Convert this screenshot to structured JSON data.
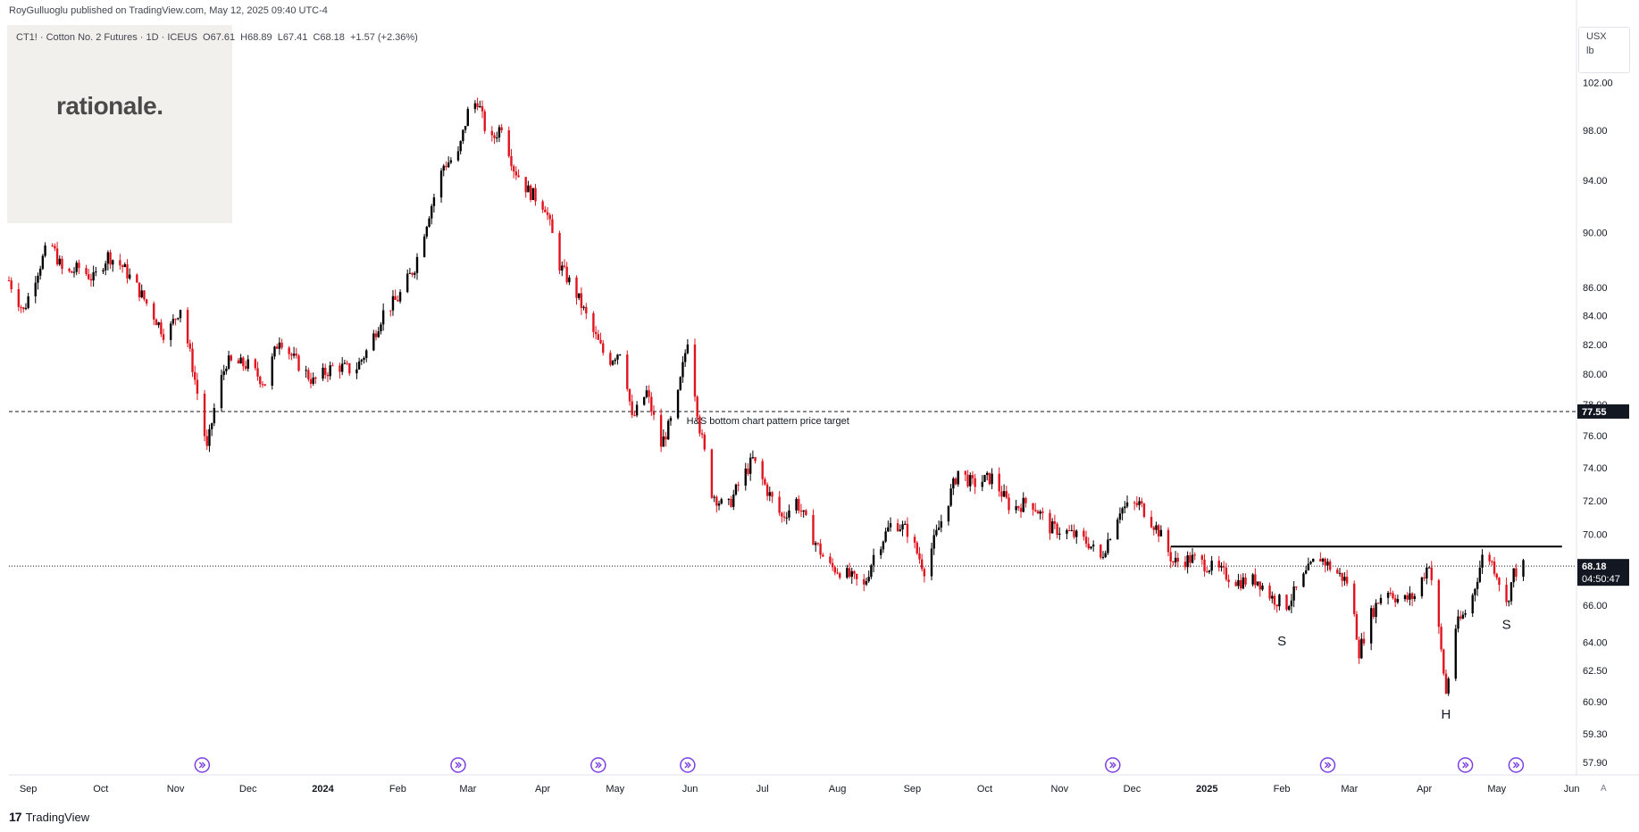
{
  "header": {
    "publisher": "RoyGulluoglu published on TradingView.com, May 12, 2025 09:40 UTC-4"
  },
  "symbol": {
    "name": "CT1! · Cotton No. 2 Futures · 1D · ICEUS",
    "open": "O67.61",
    "high": "H68.89",
    "low": "L67.41",
    "close": "C68.18",
    "change": "+1.57 (+2.36%)"
  },
  "logo": {
    "text": "rationale."
  },
  "units": {
    "currency": "USX",
    "unit": "lb"
  },
  "footer": {
    "brand": "TradingView",
    "auto": "A"
  },
  "chart_data": {
    "type": "candlestick",
    "title": "",
    "y_ticks": [
      "102.00",
      "98.00",
      "94.00",
      "90.00",
      "86.00",
      "84.00",
      "82.00",
      "80.00",
      "78.00",
      "76.00",
      "74.00",
      "72.00",
      "70.00",
      "66.00",
      "64.00",
      "62.50",
      "60.90",
      "59.30",
      "57.90"
    ],
    "y_tick_values": [
      102,
      98,
      94,
      90,
      86,
      84,
      82,
      80,
      78,
      76,
      74,
      72,
      70,
      66,
      64,
      62.5,
      60.9,
      59.3,
      57.9
    ],
    "y_top_partial": "106.00",
    "x_labels": [
      "Sep",
      "Oct",
      "Nov",
      "Dec",
      "2024",
      "Feb",
      "Mar",
      "Apr",
      "May",
      "Jun",
      "Jul",
      "Aug",
      "Sep",
      "Oct",
      "Nov",
      "Dec",
      "2025",
      "Feb",
      "Mar",
      "Apr",
      "May",
      "Jun"
    ],
    "x_range": [
      "2023-08-24",
      "2025-06-03"
    ],
    "y_scale": "log",
    "y_range": [
      57.3,
      107
    ],
    "last_price": {
      "value": 68.18,
      "label": "68.18",
      "countdown": "04:50:47",
      "color": "#131722"
    },
    "target": {
      "value": 77.55,
      "label": "77.55",
      "text": "H&S bottom chart pattern price target"
    },
    "neckline": {
      "value": 69.3,
      "start": "2024-12-17",
      "end": "2025-05-28"
    },
    "pattern_labels": [
      {
        "text": "S",
        "date": "2025-02-01",
        "price": 64.3
      },
      {
        "text": "H",
        "date": "2025-04-10",
        "price": 60.5
      },
      {
        "text": "S",
        "date": "2025-05-05",
        "price": 65.2
      }
    ],
    "event_markers": [
      "2023-11-12",
      "2024-02-26",
      "2024-04-24",
      "2024-05-31",
      "2024-11-23",
      "2025-02-20",
      "2025-04-18",
      "2025-05-09"
    ],
    "price_path": [
      [
        "2023-08-24",
        86.5
      ],
      [
        "2023-08-30",
        84.3
      ],
      [
        "2023-09-04",
        86.8
      ],
      [
        "2023-09-10",
        89.4
      ],
      [
        "2023-09-16",
        86.8
      ],
      [
        "2023-09-22",
        87.4
      ],
      [
        "2023-09-28",
        86.6
      ],
      [
        "2023-10-04",
        88.3
      ],
      [
        "2023-10-10",
        87.5
      ],
      [
        "2023-10-16",
        86.0
      ],
      [
        "2023-10-22",
        84.3
      ],
      [
        "2023-10-28",
        82.5
      ],
      [
        "2023-11-03",
        84.6
      ],
      [
        "2023-11-08",
        80.5
      ],
      [
        "2023-11-12",
        77.0
      ],
      [
        "2023-11-14",
        75.1
      ],
      [
        "2023-11-18",
        78.6
      ],
      [
        "2023-11-22",
        80.8
      ],
      [
        "2023-12-01",
        80.6
      ],
      [
        "2023-12-08",
        79.4
      ],
      [
        "2023-12-14",
        82.5
      ],
      [
        "2023-12-20",
        81.0
      ],
      [
        "2023-12-28",
        79.5
      ],
      [
        "2024-01-06",
        80.6
      ],
      [
        "2024-01-14",
        80.2
      ],
      [
        "2024-01-20",
        81.8
      ],
      [
        "2024-01-26",
        84.2
      ],
      [
        "2024-02-01",
        85.2
      ],
      [
        "2024-02-08",
        87.5
      ],
      [
        "2024-02-14",
        91.5
      ],
      [
        "2024-02-20",
        95.2
      ],
      [
        "2024-02-26",
        96.0
      ],
      [
        "2024-03-01",
        99.5
      ],
      [
        "2024-03-05",
        100.5
      ],
      [
        "2024-03-10",
        96.8
      ],
      [
        "2024-03-15",
        98.5
      ],
      [
        "2024-03-20",
        95.0
      ],
      [
        "2024-03-26",
        93.2
      ],
      [
        "2024-04-02",
        92.0
      ],
      [
        "2024-04-08",
        87.6
      ],
      [
        "2024-04-15",
        85.5
      ],
      [
        "2024-04-22",
        82.8
      ],
      [
        "2024-04-28",
        80.8
      ],
      [
        "2024-05-04",
        81.8
      ],
      [
        "2024-05-08",
        77.0
      ],
      [
        "2024-05-14",
        78.8
      ],
      [
        "2024-05-20",
        75.4
      ],
      [
        "2024-05-26",
        77.6
      ],
      [
        "2024-05-31",
        82.4
      ],
      [
        "2024-06-05",
        76.5
      ],
      [
        "2024-06-10",
        72.5
      ],
      [
        "2024-06-16",
        71.4
      ],
      [
        "2024-06-22",
        73.2
      ],
      [
        "2024-06-27",
        74.5
      ],
      [
        "2024-07-03",
        72.6
      ],
      [
        "2024-07-09",
        71.0
      ],
      [
        "2024-07-15",
        72.0
      ],
      [
        "2024-07-22",
        69.8
      ],
      [
        "2024-07-28",
        68.2
      ],
      [
        "2024-08-04",
        67.8
      ],
      [
        "2024-08-12",
        67.0
      ],
      [
        "2024-08-16",
        68.8
      ],
      [
        "2024-08-24",
        70.8
      ],
      [
        "2024-08-30",
        70.2
      ],
      [
        "2024-09-06",
        68.0
      ],
      [
        "2024-09-14",
        71.2
      ],
      [
        "2024-09-20",
        73.8
      ],
      [
        "2024-09-26",
        73.0
      ],
      [
        "2024-10-04",
        73.4
      ],
      [
        "2024-10-12",
        71.5
      ],
      [
        "2024-10-20",
        72.0
      ],
      [
        "2024-10-28",
        70.4
      ],
      [
        "2024-11-05",
        70.1
      ],
      [
        "2024-11-13",
        69.5
      ],
      [
        "2024-11-18",
        68.6
      ],
      [
        "2024-11-26",
        71.5
      ],
      [
        "2024-12-04",
        71.8
      ],
      [
        "2024-12-12",
        70.2
      ],
      [
        "2024-12-18",
        68.4
      ],
      [
        "2024-12-26",
        68.6
      ],
      [
        "2025-01-06",
        67.9
      ],
      [
        "2025-01-14",
        67.3
      ],
      [
        "2025-01-22",
        67.4
      ],
      [
        "2025-01-28",
        66.4
      ],
      [
        "2025-02-03",
        66.0
      ],
      [
        "2025-02-10",
        67.5
      ],
      [
        "2025-02-16",
        68.8
      ],
      [
        "2025-02-22",
        68.0
      ],
      [
        "2025-03-01",
        67.2
      ],
      [
        "2025-03-05",
        63.5
      ],
      [
        "2025-03-10",
        65.5
      ],
      [
        "2025-03-16",
        67.0
      ],
      [
        "2025-03-22",
        66.2
      ],
      [
        "2025-03-28",
        66.5
      ],
      [
        "2025-04-03",
        68.4
      ],
      [
        "2025-04-07",
        64.6
      ],
      [
        "2025-04-10",
        61.3
      ],
      [
        "2025-04-14",
        64.8
      ],
      [
        "2025-04-20",
        66.0
      ],
      [
        "2025-04-26",
        69.2
      ],
      [
        "2025-05-01",
        67.8
      ],
      [
        "2025-05-05",
        66.0
      ],
      [
        "2025-05-08",
        67.8
      ],
      [
        "2025-05-12",
        68.18
      ]
    ]
  }
}
